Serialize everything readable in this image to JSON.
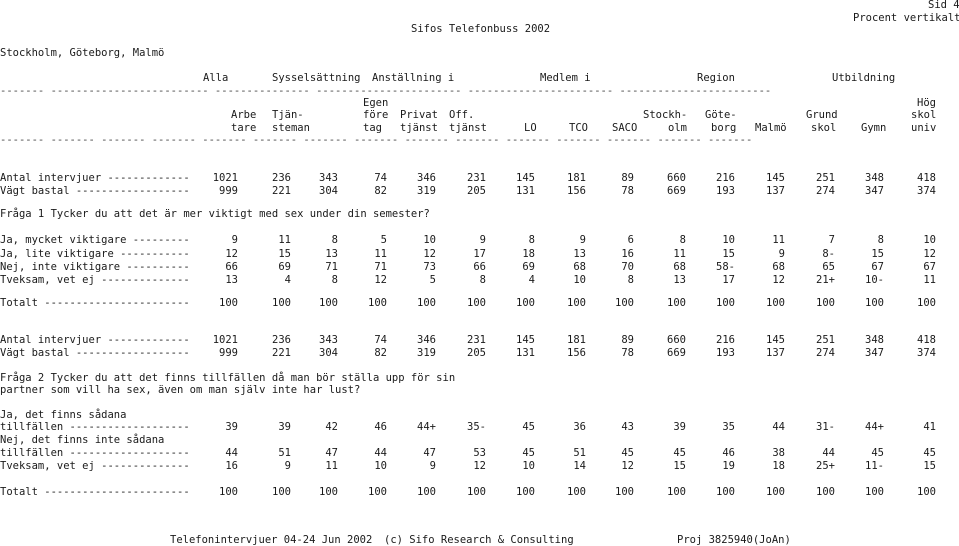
{
  "header": {
    "side": "Sid 4",
    "percent": "Procent vertikalt",
    "title": "Sifos Telefonbuss 2002",
    "region": "Stockholm, Göteborg, Malmö"
  },
  "groups": [
    "Alla",
    "Sysselsättning",
    "Anställning i",
    "Medlem i",
    "Region",
    "Utbildning"
  ],
  "col_headers_line1": [
    "",
    "",
    "Egen",
    "",
    "",
    "",
    "",
    "",
    "",
    "",
    "",
    "",
    "",
    "",
    "Hög"
  ],
  "col_headers_line2": [
    "Arbe",
    "Tjän-",
    "före",
    "Privat",
    "Off.",
    "",
    "",
    "",
    "Stockh-",
    "Göte-",
    "",
    "Grund",
    "",
    "skol"
  ],
  "col_headers_line3": [
    "tare",
    "steman",
    "tag",
    "tjänst",
    "tjänst",
    "LO",
    "TCO",
    "SACO",
    "olm",
    "borg",
    "Malmö",
    "skol",
    "Gymn",
    "univ"
  ],
  "base1": {
    "intervjuer_label": "Antal intervjuer -------------",
    "intervjuer": [
      "1021",
      "236",
      "343",
      "74",
      "346",
      "231",
      "145",
      "181",
      "89",
      "660",
      "216",
      "145",
      "251",
      "348",
      "418"
    ],
    "vagt_label": "Vägt bastal ------------------",
    "vagt": [
      "999",
      "221",
      "304",
      "82",
      "319",
      "205",
      "131",
      "156",
      "78",
      "669",
      "193",
      "137",
      "274",
      "347",
      "374"
    ]
  },
  "q1": {
    "question": "Fråga 1 Tycker du att det är mer viktigt med sex under din semester?",
    "rows": [
      {
        "label": "Ja, mycket viktigare ---------",
        "values": [
          "9",
          "11",
          "8",
          "5",
          "10",
          "9",
          "8",
          "9",
          "6",
          "8",
          "10",
          "11",
          "7",
          "8",
          "10"
        ]
      },
      {
        "label": "Ja, lite viktigare -----------",
        "values": [
          "12",
          "15",
          "13",
          "11",
          "12",
          "17",
          "18",
          "13",
          "16",
          "11",
          "15",
          "9",
          "8-",
          "15",
          "12"
        ]
      },
      {
        "label": "Nej, inte viktigare ----------",
        "values": [
          "66",
          "69",
          "71",
          "71",
          "73",
          "66",
          "69",
          "68",
          "70",
          "68",
          "58-",
          "68",
          "65",
          "67",
          "67"
        ]
      },
      {
        "label": "Tveksam, vet ej --------------",
        "values": [
          "13",
          "4",
          "8",
          "12",
          "5",
          "8",
          "4",
          "10",
          "8",
          "13",
          "17",
          "12",
          "21+",
          "10-",
          "11"
        ]
      }
    ],
    "total": {
      "label": "Totalt -----------------------",
      "values": [
        "100",
        "100",
        "100",
        "100",
        "100",
        "100",
        "100",
        "100",
        "100",
        "100",
        "100",
        "100",
        "100",
        "100",
        "100"
      ]
    }
  },
  "base2": {
    "intervjuer_label": "Antal intervjuer -------------",
    "intervjuer": [
      "1021",
      "236",
      "343",
      "74",
      "346",
      "231",
      "145",
      "181",
      "89",
      "660",
      "216",
      "145",
      "251",
      "348",
      "418"
    ],
    "vagt_label": "Vägt bastal ------------------",
    "vagt": [
      "999",
      "221",
      "304",
      "82",
      "319",
      "205",
      "131",
      "156",
      "78",
      "669",
      "193",
      "137",
      "274",
      "347",
      "374"
    ]
  },
  "q2": {
    "question_line1": "Fråga 2 Tycker du att det finns tillfällen då man bör ställa upp för sin",
    "question_line2": "partner som vill ha sex, även om man själv inte har lust?",
    "rows": [
      {
        "label_pre": "Ja, det finns sådana",
        "label": "tillfällen -------------------",
        "values": [
          "39",
          "39",
          "42",
          "46",
          "44+",
          "35-",
          "45",
          "36",
          "43",
          "39",
          "35",
          "44",
          "31-",
          "44+",
          "41"
        ]
      },
      {
        "label_pre": "Nej, det finns inte sådana",
        "label": "tillfällen -------------------",
        "values": [
          "44",
          "51",
          "47",
          "44",
          "47",
          "53",
          "45",
          "51",
          "45",
          "45",
          "46",
          "38",
          "44",
          "45",
          "45"
        ]
      },
      {
        "label_pre": "",
        "label": "Tveksam, vet ej --------------",
        "values": [
          "16",
          "9",
          "11",
          "10",
          "9",
          "12",
          "10",
          "14",
          "12",
          "15",
          "19",
          "18",
          "25+",
          "11-",
          "15"
        ]
      }
    ],
    "total": {
      "label": "Totalt -----------------------",
      "values": [
        "100",
        "100",
        "100",
        "100",
        "100",
        "100",
        "100",
        "100",
        "100",
        "100",
        "100",
        "100",
        "100",
        "100",
        "100"
      ]
    }
  },
  "footer": {
    "left": "Telefonintervjuer 04-24 Jun 2002",
    "mid": "(c) Sifo Research & Consulting",
    "right": "Proj 3825940(JoAn)"
  }
}
